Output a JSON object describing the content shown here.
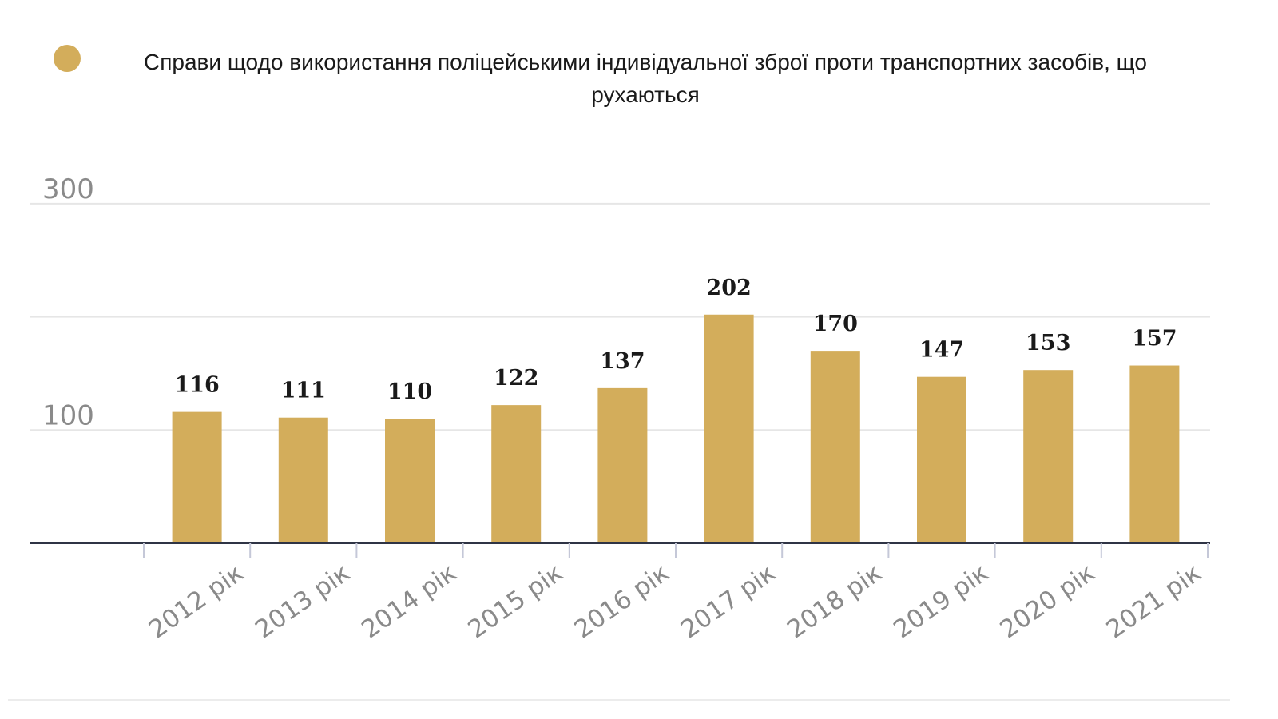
{
  "colors": {
    "bar": "#d3ad5b",
    "legend_marker": "#d3ad5b",
    "axis": "#2f3445",
    "grid": "#e6e6e6",
    "tick_text": "#8a8a8a",
    "label_text": "#1a1a1a"
  },
  "chart_data": {
    "type": "bar",
    "categories": [
      "2012 рік",
      "2013 рік",
      "2014 рік",
      "2015 рік",
      "2016 рік",
      "2017 рік",
      "2018 рік",
      "2019 рік",
      "2020 рік",
      "2021 рік"
    ],
    "series": [
      {
        "name": "Справи щодо використання поліцейськими індивідуальної зброї проти транспортних засобів, що рухаються",
        "values": [
          116,
          111,
          110,
          122,
          137,
          202,
          170,
          147,
          153,
          157
        ]
      }
    ],
    "legend": {
      "position": "top",
      "line1": "Справи щодо використання поліцейськими індивідуальної зброї проти транспортних засобів, що",
      "line2": "рухаються"
    },
    "y_ticks": [
      {
        "value": 100,
        "label": "100"
      },
      {
        "value": 300,
        "label": "300"
      }
    ],
    "ylim": [
      0,
      300
    ],
    "gridlines": [
      100,
      200,
      300
    ],
    "grid": true,
    "data_labels": true,
    "xlabel": "",
    "ylabel": ""
  }
}
